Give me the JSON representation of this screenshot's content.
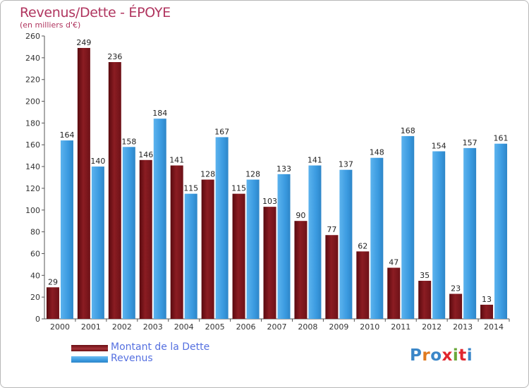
{
  "title": "Revenus/Dette - ÉPOYE",
  "subtitle": "(en milliers d'€)",
  "colors": {
    "dette": "#8b1c22",
    "revenus": "#3a9ae0",
    "title": "#b0355f",
    "legend_text": "#5570e0"
  },
  "legend": [
    {
      "label": "Montant de la Dette",
      "color": "#6b0f14"
    },
    {
      "label": "Revenus",
      "color": "#3a9ae0"
    }
  ],
  "logo": {
    "text": "Proxiti",
    "icon": "proxiti-logo"
  },
  "chart_data": {
    "type": "bar",
    "title": "Revenus/Dette - ÉPOYE",
    "subtitle": "(en milliers d'€)",
    "categories": [
      "2000",
      "2001",
      "2002",
      "2003",
      "2004",
      "2005",
      "2006",
      "2007",
      "2008",
      "2009",
      "2010",
      "2011",
      "2012",
      "2013",
      "2014"
    ],
    "series": [
      {
        "name": "Montant de la Dette",
        "values": [
          29,
          249,
          236,
          146,
          141,
          128,
          115,
          103,
          90,
          77,
          62,
          47,
          35,
          23,
          13
        ]
      },
      {
        "name": "Revenus",
        "values": [
          164,
          140,
          158,
          184,
          115,
          167,
          128,
          133,
          141,
          137,
          148,
          168,
          154,
          157,
          161
        ]
      }
    ],
    "ylim": [
      0,
      260
    ],
    "yticks": [
      0,
      20,
      40,
      60,
      80,
      100,
      120,
      140,
      160,
      180,
      200,
      220,
      240,
      260
    ],
    "grid": false,
    "legend_position": "bottom-left"
  }
}
